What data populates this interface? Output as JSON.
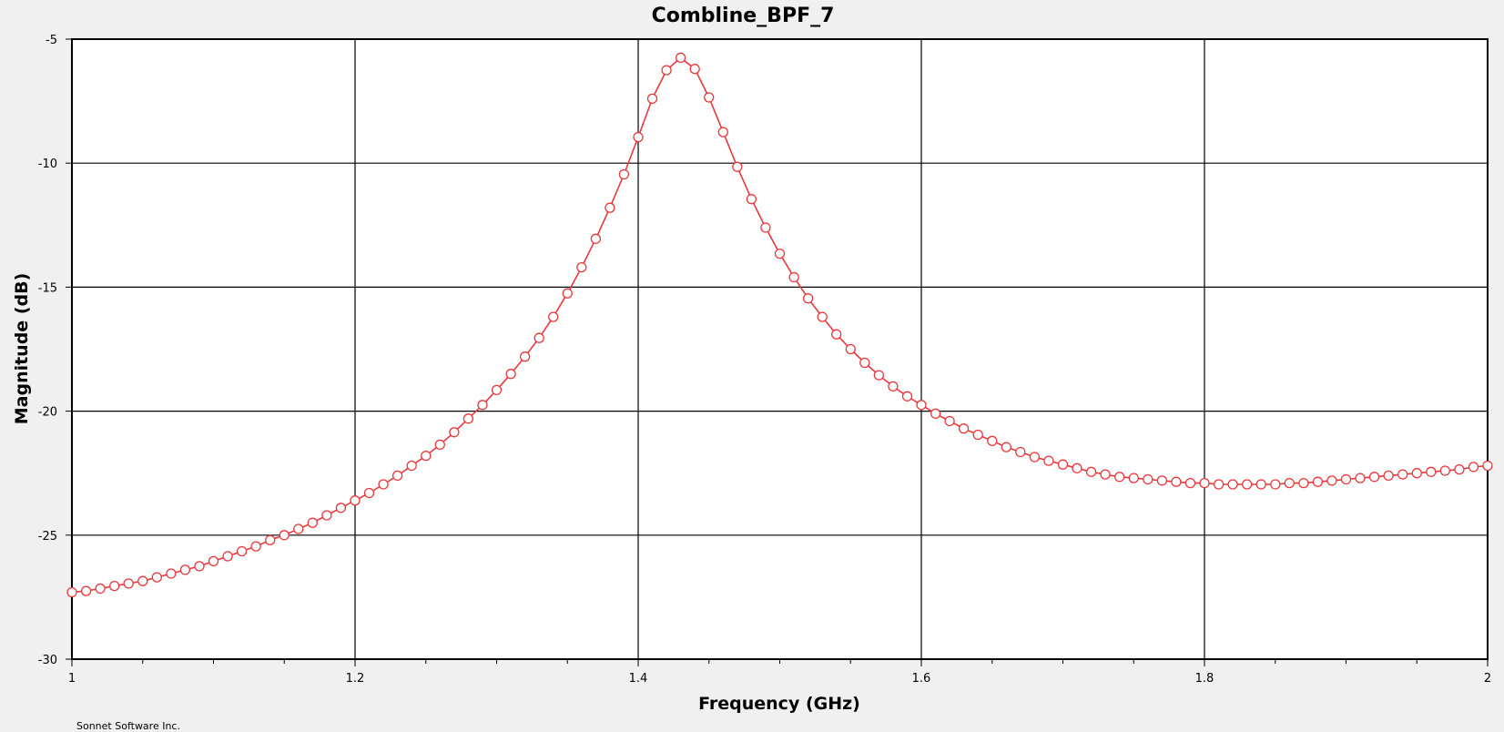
{
  "footer": "Sonnet Software Inc.",
  "chart_data": {
    "type": "line",
    "title": "Combline_BPF_7",
    "xlabel": "Frequency (GHz)",
    "ylabel": "Magnitude (dB)",
    "xlim": [
      1,
      2
    ],
    "ylim": [
      -30,
      -5
    ],
    "xticks": [
      1,
      1.2,
      1.4,
      1.6,
      1.8,
      2
    ],
    "xtick_labels": [
      "1",
      "1.2",
      "1.4",
      "1.6",
      "1.8",
      "2"
    ],
    "xminor_ticks": [
      1.05,
      1.1,
      1.15,
      1.25,
      1.3,
      1.35,
      1.45,
      1.5,
      1.55,
      1.65,
      1.7,
      1.75,
      1.85,
      1.9,
      1.95
    ],
    "yticks": [
      -30,
      -25,
      -20,
      -15,
      -10,
      -5
    ],
    "ytick_labels": [
      "-30",
      "-25",
      "-20",
      "-15",
      "-10",
      "-5"
    ],
    "grid": true,
    "series": [
      {
        "color": "#e8383d",
        "marker": "open-circle",
        "x": [
          1.0,
          1.01,
          1.02,
          1.03,
          1.04,
          1.05,
          1.06,
          1.07,
          1.08,
          1.09,
          1.1,
          1.11,
          1.12,
          1.13,
          1.14,
          1.15,
          1.16,
          1.17,
          1.18,
          1.19,
          1.2,
          1.21,
          1.22,
          1.23,
          1.24,
          1.25,
          1.26,
          1.27,
          1.28,
          1.29,
          1.3,
          1.31,
          1.32,
          1.33,
          1.34,
          1.35,
          1.36,
          1.37,
          1.38,
          1.39,
          1.4,
          1.41,
          1.42,
          1.43,
          1.44,
          1.45,
          1.46,
          1.47,
          1.48,
          1.49,
          1.5,
          1.51,
          1.52,
          1.53,
          1.54,
          1.55,
          1.56,
          1.57,
          1.58,
          1.59,
          1.6,
          1.61,
          1.62,
          1.63,
          1.64,
          1.65,
          1.66,
          1.67,
          1.68,
          1.69,
          1.7,
          1.71,
          1.72,
          1.73,
          1.74,
          1.75,
          1.76,
          1.77,
          1.78,
          1.79,
          1.8,
          1.81,
          1.82,
          1.83,
          1.84,
          1.85,
          1.86,
          1.87,
          1.88,
          1.89,
          1.9,
          1.91,
          1.92,
          1.93,
          1.94,
          1.95,
          1.96,
          1.97,
          1.98,
          1.99,
          2.0
        ],
        "y": [
          -27.3,
          -27.25,
          -27.15,
          -27.05,
          -26.95,
          -26.85,
          -26.7,
          -26.55,
          -26.4,
          -26.25,
          -26.05,
          -25.85,
          -25.65,
          -25.45,
          -25.2,
          -25.0,
          -24.75,
          -24.5,
          -24.2,
          -23.9,
          -23.6,
          -23.3,
          -22.95,
          -22.6,
          -22.2,
          -21.8,
          -21.35,
          -20.85,
          -20.3,
          -19.75,
          -19.15,
          -18.5,
          -17.8,
          -17.05,
          -16.2,
          -15.25,
          -14.2,
          -13.05,
          -11.8,
          -10.45,
          -8.95,
          -7.4,
          -6.25,
          -5.75,
          -6.2,
          -7.35,
          -8.75,
          -10.15,
          -11.45,
          -12.6,
          -13.65,
          -14.6,
          -15.45,
          -16.2,
          -16.9,
          -17.5,
          -18.05,
          -18.55,
          -19.0,
          -19.4,
          -19.75,
          -20.1,
          -20.4,
          -20.7,
          -20.95,
          -21.2,
          -21.45,
          -21.65,
          -21.85,
          -22.0,
          -22.15,
          -22.3,
          -22.45,
          -22.55,
          -22.65,
          -22.7,
          -22.75,
          -22.8,
          -22.85,
          -22.9,
          -22.9,
          -22.95,
          -22.95,
          -22.95,
          -22.95,
          -22.95,
          -22.9,
          -22.9,
          -22.85,
          -22.8,
          -22.75,
          -22.7,
          -22.65,
          -22.6,
          -22.55,
          -22.5,
          -22.45,
          -22.4,
          -22.35,
          -22.25,
          -22.2
        ]
      }
    ]
  }
}
